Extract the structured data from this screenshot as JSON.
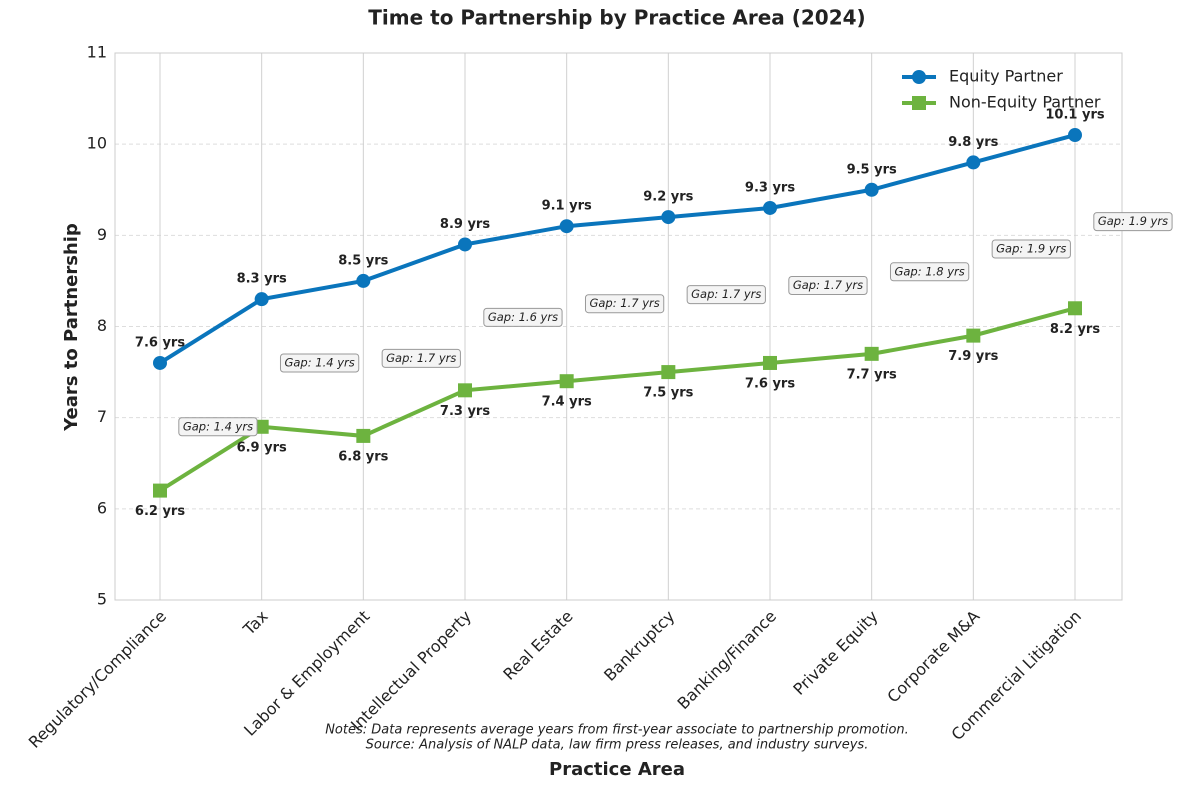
{
  "chart_data": {
    "type": "line",
    "title": "Time to Partnership by Practice Area (2024)",
    "xlabel": "Practice Area",
    "ylabel": "Years to Partnership",
    "notes": [
      "Notes: Data represents average years from first-year associate to partnership promotion.",
      "Source: Analysis of NALP data, law firm press releases, and industry surveys."
    ],
    "categories": [
      "Regulatory/Compliance",
      "Tax",
      "Labor & Employment",
      "Intellectual Property",
      "Real Estate",
      "Bankruptcy",
      "Banking/Finance",
      "Private Equity",
      "Corporate M&A",
      "Commercial Litigation"
    ],
    "series": [
      {
        "name": "Equity Partner",
        "color": "#0a75bc",
        "marker": "circle",
        "values": [
          7.6,
          8.3,
          8.5,
          8.9,
          9.1,
          9.2,
          9.3,
          9.5,
          9.8,
          10.1
        ],
        "value_labels": [
          "7.6 yrs",
          "8.3 yrs",
          "8.5 yrs",
          "8.9 yrs",
          "9.1 yrs",
          "9.2 yrs",
          "9.3 yrs",
          "9.5 yrs",
          "9.8 yrs",
          "10.1 yrs"
        ]
      },
      {
        "name": "Non-Equity Partner",
        "color": "#6db33f",
        "marker": "square",
        "values": [
          6.2,
          6.9,
          6.8,
          7.3,
          7.4,
          7.5,
          7.6,
          7.7,
          7.9,
          8.2
        ],
        "value_labels": [
          "6.2 yrs",
          "6.9 yrs",
          "6.8 yrs",
          "7.3 yrs",
          "7.4 yrs",
          "7.5 yrs",
          "7.6 yrs",
          "7.7 yrs",
          "7.9 yrs",
          "8.2 yrs"
        ]
      }
    ],
    "annotations": [
      "Gap: 1.4 yrs",
      "Gap: 1.4 yrs",
      "Gap: 1.7 yrs",
      "Gap: 1.6 yrs",
      "Gap: 1.7 yrs",
      "Gap: 1.7 yrs",
      "Gap: 1.7 yrs",
      "Gap: 1.8 yrs",
      "Gap: 1.9 yrs",
      "Gap: 1.9 yrs"
    ],
    "ylim": [
      5,
      11
    ],
    "yticks": [
      5,
      6,
      7,
      8,
      9,
      10,
      11
    ],
    "grid": true,
    "legend": "upper right"
  }
}
